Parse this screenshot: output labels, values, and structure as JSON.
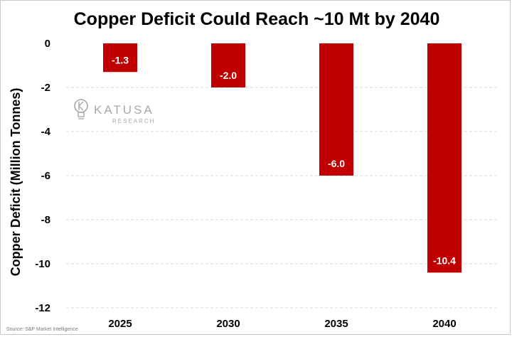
{
  "chart_data": {
    "type": "bar",
    "title": "Copper Deficit Could Reach ~10 Mt by 2040",
    "xlabel": "",
    "ylabel": "Copper Deficit (Million Tonnes)",
    "categories": [
      "2025",
      "2030",
      "2035",
      "2040"
    ],
    "values": [
      -1.3,
      -2.0,
      -6.0,
      -10.4
    ],
    "data_labels": [
      "-1.3",
      "-2.0",
      "-6.0",
      "-10.4"
    ],
    "ylim": [
      -12,
      0
    ],
    "yticks": [
      0,
      -2,
      -4,
      -6,
      -8,
      -10,
      -12
    ],
    "ytick_labels": [
      "0",
      "-2",
      "-4",
      "-6",
      "-8",
      "-10",
      "-12"
    ],
    "grid": true,
    "bar_color": "#C00000",
    "grid_color": "#d9d9d9"
  },
  "watermark": {
    "name": "KATUSA",
    "sub": "RESEARCH"
  },
  "source": "Source: S&P Market Intelligence"
}
